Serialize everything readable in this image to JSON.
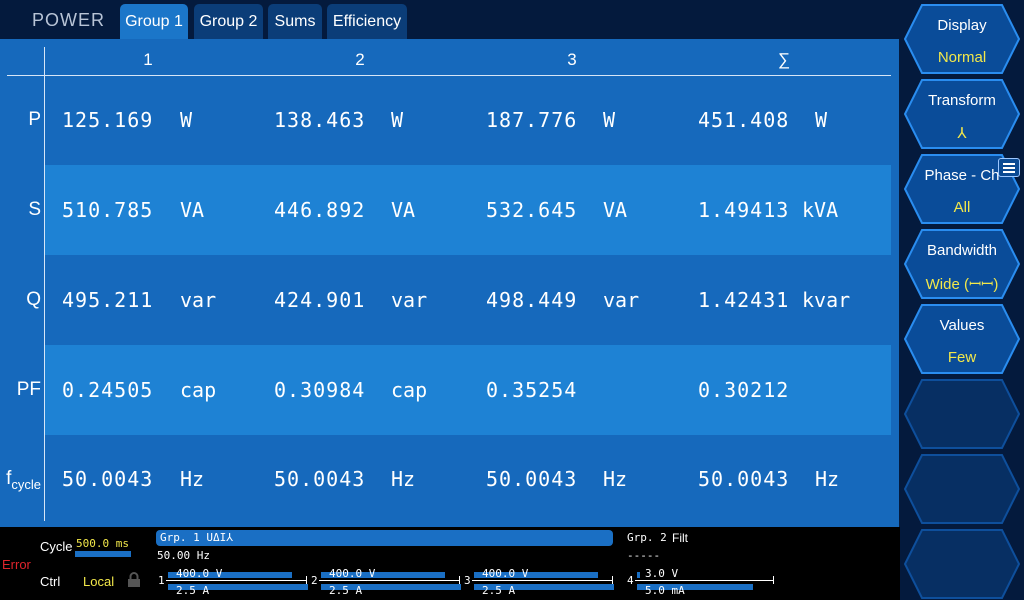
{
  "app_title": "POWER",
  "tabs": [
    {
      "label": "Group 1",
      "active": true
    },
    {
      "label": "Group 2"
    },
    {
      "label": "Sums"
    },
    {
      "label": "Efficiency"
    }
  ],
  "columns": [
    "1",
    "2",
    "3",
    "∑"
  ],
  "rows": [
    {
      "label": "P",
      "cells": [
        {
          "v": "125.169",
          "u": "W"
        },
        {
          "v": "138.463",
          "u": "W"
        },
        {
          "v": "187.776",
          "u": "W"
        },
        {
          "v": "451.408",
          "u": "W"
        }
      ]
    },
    {
      "label": "S",
      "cells": [
        {
          "v": "510.785",
          "u": "VA"
        },
        {
          "v": "446.892",
          "u": "VA"
        },
        {
          "v": "532.645",
          "u": "VA"
        },
        {
          "v": "1.49413",
          "u": "kVA"
        }
      ]
    },
    {
      "label": "Q",
      "cells": [
        {
          "v": "495.211",
          "u": "var"
        },
        {
          "v": "424.901",
          "u": "var"
        },
        {
          "v": "498.449",
          "u": "var"
        },
        {
          "v": "1.42431",
          "u": "kvar"
        }
      ]
    },
    {
      "label": "PF",
      "cells": [
        {
          "v": "0.24505",
          "u": "cap"
        },
        {
          "v": "0.30984",
          "u": "cap"
        },
        {
          "v": "0.35254",
          "u": ""
        },
        {
          "v": "0.30212",
          "u": ""
        }
      ]
    },
    {
      "label": "f",
      "sub": "cycle",
      "cells": [
        {
          "v": "50.0043",
          "u": "Hz"
        },
        {
          "v": "50.0043",
          "u": "Hz"
        },
        {
          "v": "50.0043",
          "u": "Hz"
        },
        {
          "v": "50.0043",
          "u": "Hz"
        }
      ]
    }
  ],
  "side_buttons": [
    {
      "label": "Display",
      "value": "Normal"
    },
    {
      "label": "Transform",
      "value": "⅄"
    },
    {
      "label": "Phase - Ch",
      "value": "All",
      "icon": "list-icon"
    },
    {
      "label": "Bandwidth",
      "value": "Wide (ꟷꟷ)"
    },
    {
      "label": "Values",
      "value": "Few"
    },
    {
      "label": "",
      "value": ""
    },
    {
      "label": "",
      "value": ""
    },
    {
      "label": "",
      "value": ""
    }
  ],
  "status": {
    "error": "Error",
    "cycle_label": "Cycle",
    "cycle_value": "500.0 ms",
    "ctrl_label": "Ctrl",
    "ctrl_value": "Local",
    "group1_title": "Grp. 1 UΔI⅄",
    "group1_freq": "50.00  Hz",
    "group2_title": "Grp. 2",
    "group2_filt": "Filt",
    "group2_dashes": "-----",
    "channels": [
      {
        "num": "1",
        "u": "400.0 V",
        "i": "2.5 A"
      },
      {
        "num": "2",
        "u": "400.0 V",
        "i": "2.5 A"
      },
      {
        "num": "3",
        "u": "400.0 V",
        "i": "2.5 A"
      },
      {
        "num": "4",
        "u": "3.0 V",
        "i": "5.0 mA"
      }
    ]
  }
}
